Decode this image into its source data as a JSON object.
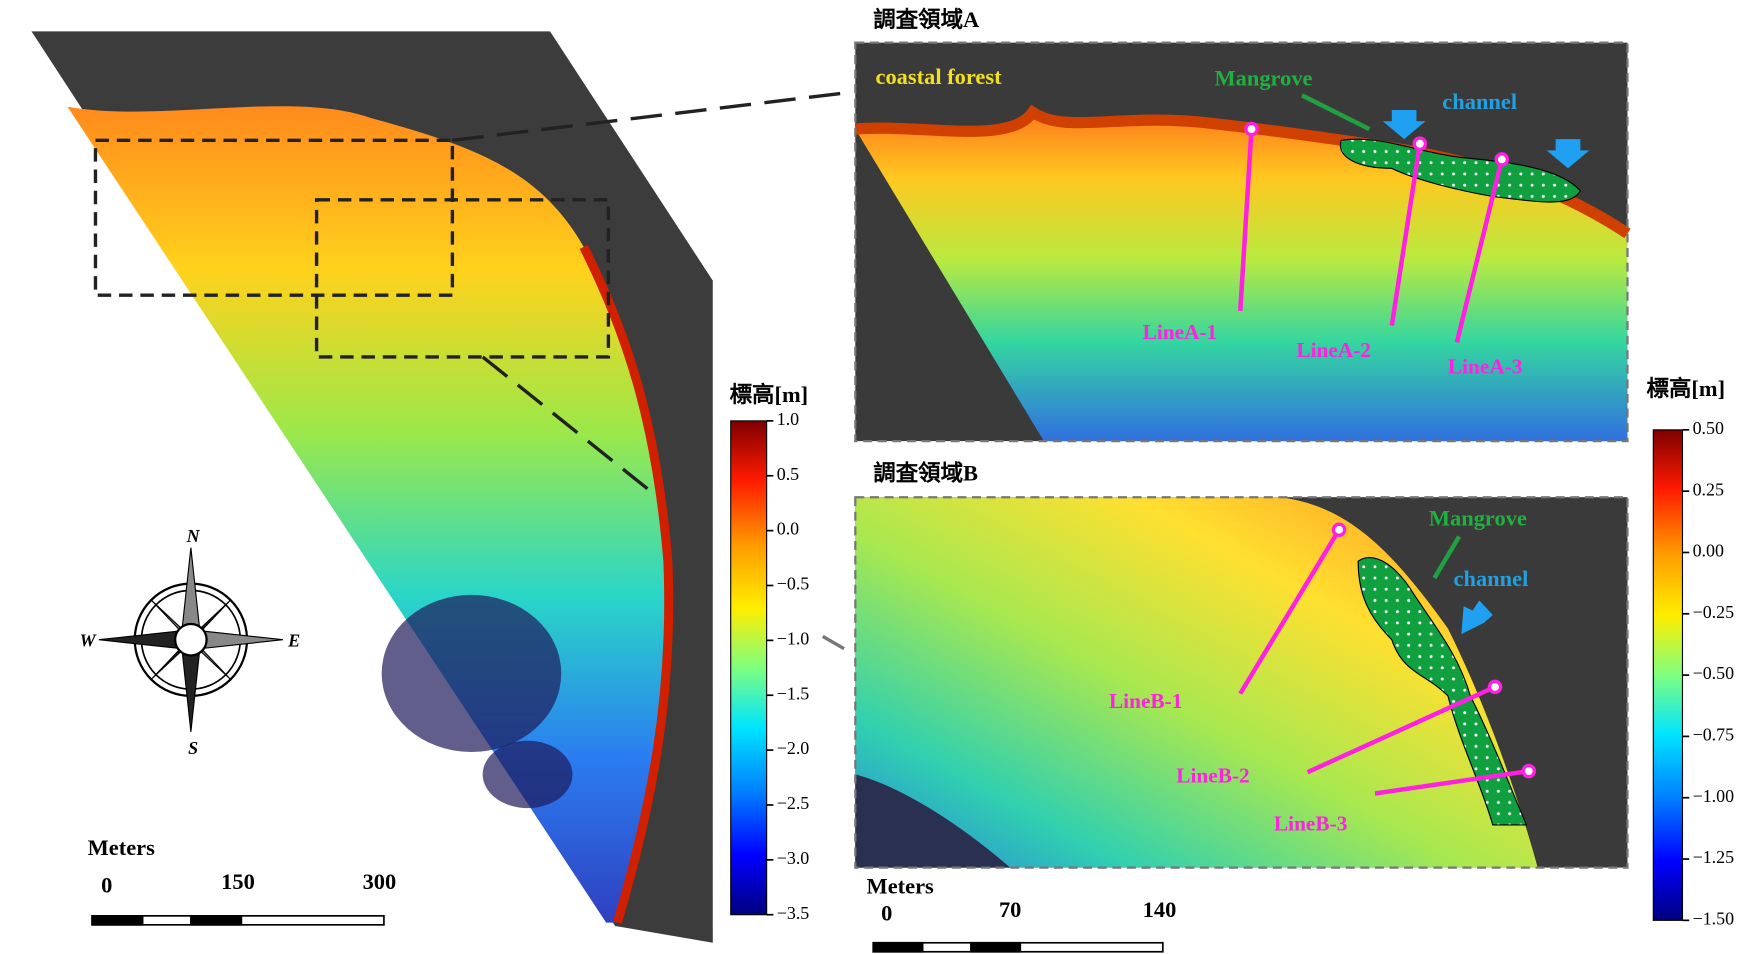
{
  "overview": {
    "colorbar": {
      "title": "標高[m]",
      "lim": [
        -3.5,
        1.0
      ],
      "ticks": [
        {
          "value": 1.0,
          "label": "1.0"
        },
        {
          "value": 0.5,
          "label": "0.5"
        },
        {
          "value": 0.0,
          "label": "0.0"
        },
        {
          "value": -0.5,
          "label": "−0.5"
        },
        {
          "value": -1.0,
          "label": "−1.0"
        },
        {
          "value": -1.5,
          "label": "−1.5"
        },
        {
          "value": -2.0,
          "label": "−2.0"
        },
        {
          "value": -2.5,
          "label": "−2.5"
        },
        {
          "value": -3.0,
          "label": "−3.0"
        },
        {
          "value": -3.5,
          "label": "−3.5"
        }
      ]
    },
    "compass": {
      "north": "N",
      "east": "E",
      "south": "S",
      "west": "W"
    },
    "scale_bar": {
      "unit": "Meters",
      "labels": [
        0,
        150,
        300
      ]
    }
  },
  "area_a": {
    "title": "調査領域A",
    "forest": "coastal forest",
    "mangrove": "Mangrove",
    "channel": "channel",
    "lines": [
      "LineA-1",
      "LineA-2",
      "LineA-3"
    ]
  },
  "area_b": {
    "title": "調査領域B",
    "mangrove": "Mangrove",
    "channel": "channel",
    "lines": [
      "LineB-1",
      "LineB-2",
      "LineB-3"
    ]
  },
  "detail_colorbar": {
    "title": "標高[m]",
    "lim": [
      -1.5,
      0.5
    ],
    "ticks": [
      {
        "value": 0.5,
        "label": "0.50"
      },
      {
        "value": 0.25,
        "label": "0.25"
      },
      {
        "value": 0.0,
        "label": "0.00"
      },
      {
        "value": -0.25,
        "label": "−0.25"
      },
      {
        "value": -0.5,
        "label": "−0.50"
      },
      {
        "value": -0.75,
        "label": "−0.75"
      },
      {
        "value": -1.0,
        "label": "−1.00"
      },
      {
        "value": -1.25,
        "label": "−1.25"
      },
      {
        "value": -1.5,
        "label": "−1.50"
      }
    ]
  },
  "detail_scale_bar": {
    "unit": "Meters",
    "labels": [
      0,
      70,
      140
    ]
  }
}
